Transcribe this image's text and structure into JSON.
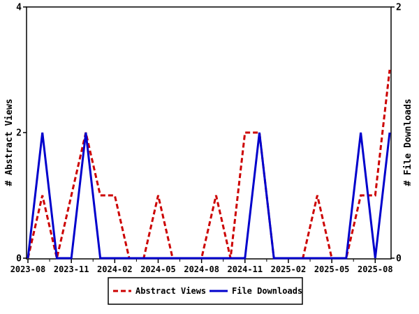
{
  "chart_data": {
    "type": "line",
    "title": "",
    "categories": [
      "2023-08",
      "2023-09",
      "2023-10",
      "2023-11",
      "2023-12",
      "2024-01",
      "2024-02",
      "2024-03",
      "2024-04",
      "2024-05",
      "2024-06",
      "2024-07",
      "2024-08",
      "2024-09",
      "2024-10",
      "2024-11",
      "2024-12",
      "2025-01",
      "2025-02",
      "2025-03",
      "2025-04",
      "2025-05",
      "2025-06",
      "2025-07",
      "2025-08",
      "2025-09"
    ],
    "series": [
      {
        "name": "Abstract Views",
        "axis": "left",
        "color": "#cc0000",
        "style": "dashed",
        "values": [
          0,
          1,
          0,
          1,
          2,
          1,
          1,
          0,
          0,
          1,
          0,
          0,
          0,
          1,
          0,
          2,
          2,
          0,
          0,
          0,
          1,
          0,
          0,
          1,
          1,
          3
        ]
      },
      {
        "name": "File Downloads",
        "axis": "right",
        "color": "#0000cc",
        "style": "solid",
        "values": [
          0,
          1,
          0,
          0,
          1,
          0,
          0,
          0,
          0,
          0,
          0,
          0,
          0,
          0,
          0,
          0,
          1,
          0,
          0,
          0,
          0,
          0,
          0,
          1,
          0,
          1
        ]
      }
    ],
    "x_axis": {
      "tick_labels": [
        "2023-08",
        "2023-11",
        "2024-02",
        "2024-05",
        "2024-08",
        "2024-11",
        "2025-02",
        "2025-05",
        "2025-08"
      ],
      "minor_ticks_between_majors": 1
    },
    "left_axis": {
      "label": "# Abstract Views",
      "min": 0,
      "max": 4,
      "ticks": [
        0,
        2,
        4
      ],
      "tick_labels": [
        "0",
        "2",
        "4"
      ]
    },
    "right_axis": {
      "label": "# File Downloads",
      "min": 0,
      "max": 2,
      "ticks": [
        0,
        2
      ],
      "tick_labels": [
        "0",
        "2"
      ]
    },
    "legend": {
      "position": "bottom-center",
      "entries": [
        "Abstract Views",
        "File Downloads"
      ]
    },
    "colors": {
      "abstract_views": "#cc0000",
      "file_downloads": "#0000cc",
      "axis": "#000000",
      "background": "#ffffff"
    },
    "grid": false
  }
}
